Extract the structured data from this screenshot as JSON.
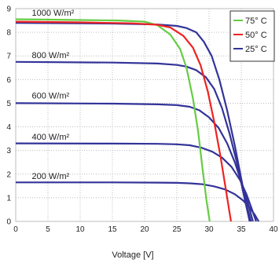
{
  "chart_data": {
    "type": "line",
    "title": "",
    "xlabel": "Voltage [V]",
    "ylabel": "",
    "xlim": [
      0,
      40
    ],
    "ylim": [
      0,
      9
    ],
    "xticks": [
      0,
      5,
      10,
      15,
      20,
      25,
      30,
      35,
      40
    ],
    "xtick_labels": [
      "0",
      "5",
      "10",
      "15",
      "20",
      "25",
      "30",
      "35",
      "40"
    ],
    "yticks": [
      0,
      1,
      2,
      3,
      4,
      5,
      6,
      7,
      8,
      9
    ],
    "ytick_labels": [
      "0",
      "1",
      "2",
      "3",
      "4",
      "5",
      "6",
      "7",
      "8",
      "9"
    ],
    "grid": true,
    "grid_style": "dotted",
    "legend": {
      "position": "top-right",
      "entries": [
        {
          "name": "75° C",
          "color": "#66cc44"
        },
        {
          "name": "50° C",
          "color": "#ee2222"
        },
        {
          "name": "25° C",
          "color": "#333399"
        }
      ]
    },
    "annotations": [
      {
        "text": "1000 W/m²",
        "x": 2.5,
        "y": 8.7
      },
      {
        "text": "800 W/m²",
        "x": 2.5,
        "y": 6.9
      },
      {
        "text": "600 W/m²",
        "x": 2.5,
        "y": 5.2
      },
      {
        "text": "400 W/m²",
        "x": 2.5,
        "y": 3.45
      },
      {
        "text": "200 W/m²",
        "x": 2.5,
        "y": 1.8
      }
    ],
    "series": [
      {
        "name": "75° C",
        "color": "#66cc44",
        "x": [
          0,
          10,
          16,
          20,
          22,
          24,
          25.5,
          26.5,
          27.5,
          28.3,
          29,
          29.6,
          30.1
        ],
        "y": [
          8.55,
          8.52,
          8.5,
          8.45,
          8.3,
          7.9,
          7.3,
          6.5,
          5.2,
          3.8,
          2.2,
          0.9,
          0
        ]
      },
      {
        "name": "50° C",
        "color": "#ee2222",
        "x": [
          0,
          10,
          18,
          22,
          24,
          26,
          27.5,
          28.7,
          29.8,
          30.8,
          31.8,
          32.7,
          33.4
        ],
        "y": [
          8.45,
          8.42,
          8.38,
          8.32,
          8.2,
          7.85,
          7.35,
          6.6,
          5.5,
          4.2,
          2.7,
          1.2,
          0
        ]
      },
      {
        "name": "25° C",
        "color": "#333399",
        "group": "1000 W/m²",
        "x": [
          0,
          15,
          22,
          25,
          26.5,
          28,
          29.2,
          30.4,
          31.6,
          32.8,
          34,
          35,
          35.8,
          36.5
        ],
        "y": [
          8.4,
          8.37,
          8.33,
          8.27,
          8.18,
          8.0,
          7.6,
          7.0,
          6.0,
          4.7,
          3.2,
          1.8,
          0.7,
          0
        ]
      },
      {
        "name": "25° C",
        "color": "#333399",
        "group": "800 W/m²",
        "x": [
          0,
          15,
          22,
          25,
          26.5,
          28,
          29.5,
          30.8,
          32,
          33.2,
          34.4,
          35.4,
          36.3
        ],
        "y": [
          6.75,
          6.72,
          6.68,
          6.62,
          6.55,
          6.4,
          6.1,
          5.6,
          4.8,
          3.7,
          2.4,
          1.1,
          0
        ]
      },
      {
        "name": "25° C",
        "color": "#333399",
        "group": "600 W/m²",
        "x": [
          0,
          15,
          22,
          25,
          27,
          28.5,
          30,
          31.5,
          32.8,
          34,
          35.1,
          36,
          36.8
        ],
        "y": [
          5.0,
          4.98,
          4.95,
          4.92,
          4.85,
          4.7,
          4.4,
          3.95,
          3.3,
          2.5,
          1.6,
          0.8,
          0
        ]
      },
      {
        "name": "25° C",
        "color": "#333399",
        "group": "400 W/m²",
        "x": [
          0,
          15,
          22,
          25,
          27,
          28.8,
          30.5,
          32,
          33.5,
          34.8,
          35.8,
          36.6,
          37.3
        ],
        "y": [
          3.3,
          3.29,
          3.28,
          3.26,
          3.22,
          3.12,
          2.95,
          2.7,
          2.3,
          1.75,
          1.15,
          0.55,
          0
        ]
      },
      {
        "name": "25° C",
        "color": "#333399",
        "group": "200 W/m²",
        "x": [
          0,
          15,
          22,
          25,
          27,
          29,
          30.8,
          32.5,
          34,
          35.3,
          36.3,
          37.1,
          37.7
        ],
        "y": [
          1.65,
          1.65,
          1.64,
          1.63,
          1.61,
          1.57,
          1.48,
          1.35,
          1.15,
          0.88,
          0.58,
          0.28,
          0
        ]
      }
    ]
  }
}
